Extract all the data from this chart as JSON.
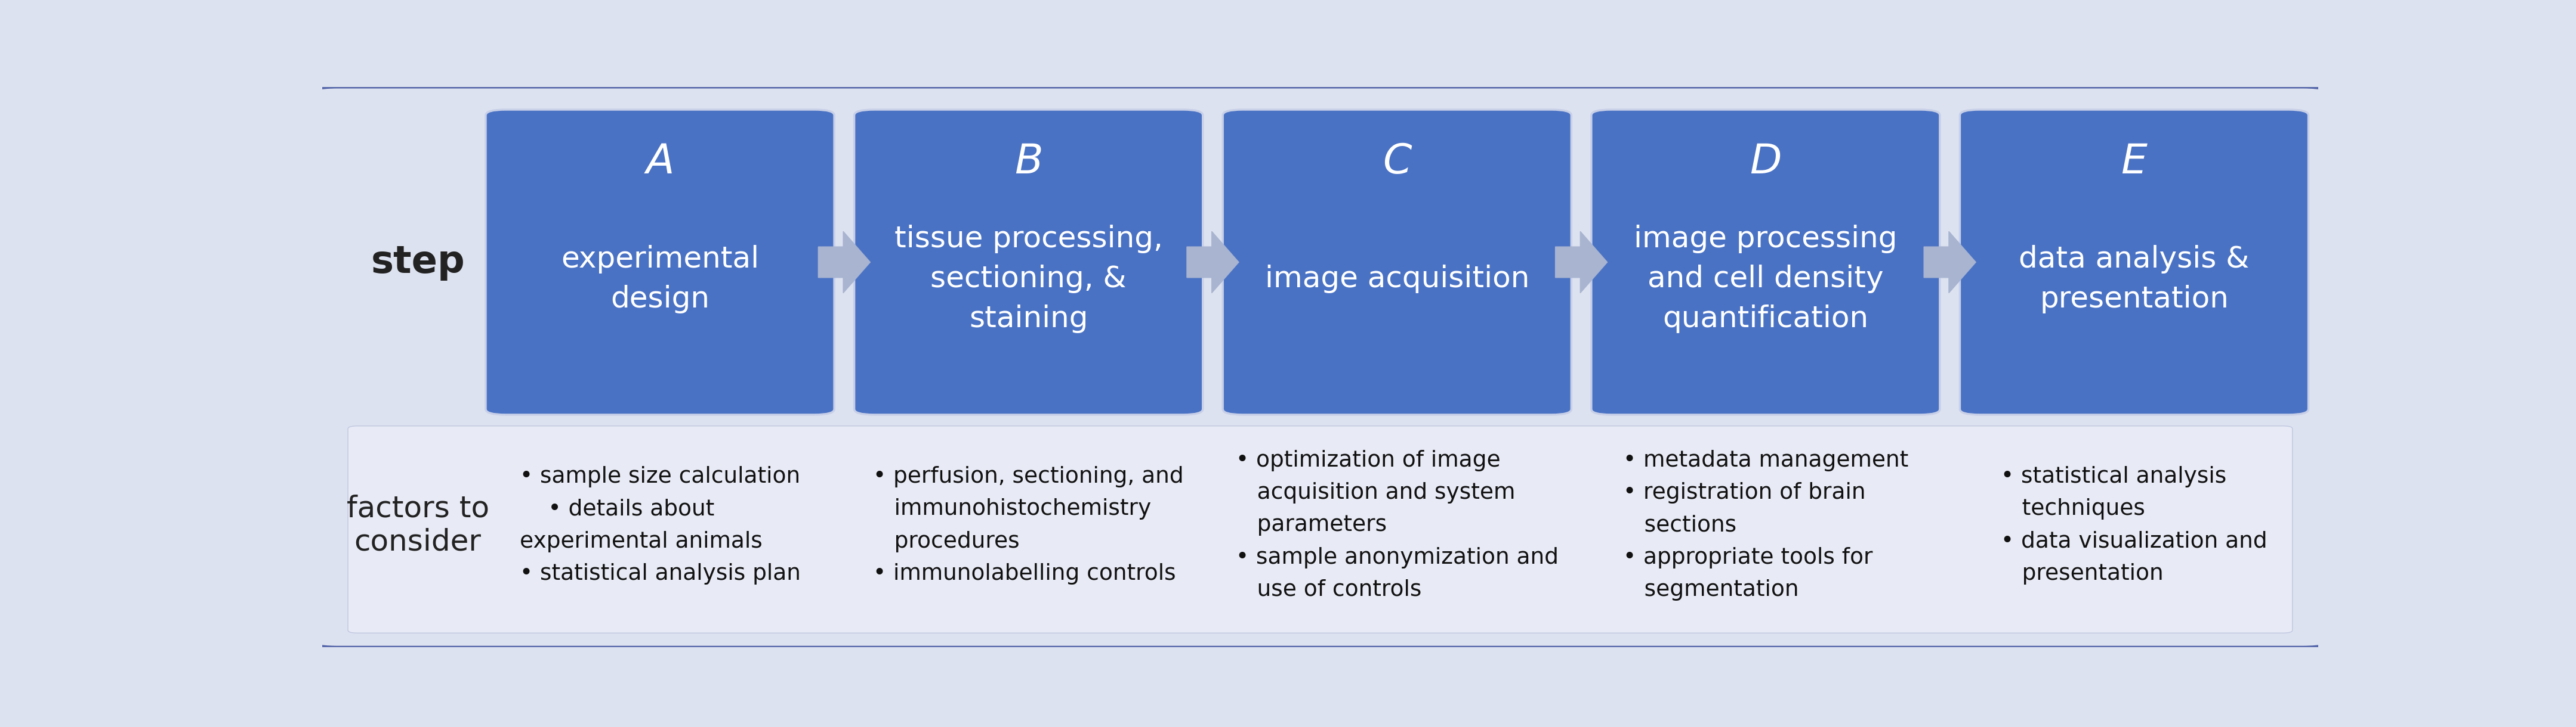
{
  "fig_width": 43.17,
  "fig_height": 12.2,
  "background_color": "#dde2f0",
  "outer_border_color": "#5566aa",
  "box_color": "#4a72c4",
  "box_border_color": "#c8d0e8",
  "arrow_color": "#a8b4d0",
  "lower_bg_color": "#e8eaf5",
  "step_label": "step",
  "factors_label": "factors to\nconsider",
  "label_color": "#222222",
  "text_color_white": "#ffffff",
  "text_color_dark": "#111111",
  "steps": [
    {
      "letter": "A",
      "title": "experimental\ndesign",
      "factors": "• sample size calculation\n    • details about\nexperimental animals\n• statistical analysis plan"
    },
    {
      "letter": "B",
      "title": "tissue processing,\nsectioning, &\nstaining",
      "factors": "• perfusion, sectioning, and\n   immunohistochemistry\n   procedures\n• immunolabelling controls"
    },
    {
      "letter": "C",
      "title": "image acquisition",
      "factors": "• optimization of image\n   acquisition and system\n   parameters\n• sample anonymization and\n   use of controls"
    },
    {
      "letter": "D",
      "title": "image processing\nand cell density\nquantification",
      "factors": "• metadata management\n• registration of brain\n   sections\n• appropriate tools for\n   segmentation"
    },
    {
      "letter": "E",
      "title": "data analysis &\npresentation",
      "factors": "• statistical analysis\n   techniques\n• data visualization and\n   presentation"
    }
  ]
}
